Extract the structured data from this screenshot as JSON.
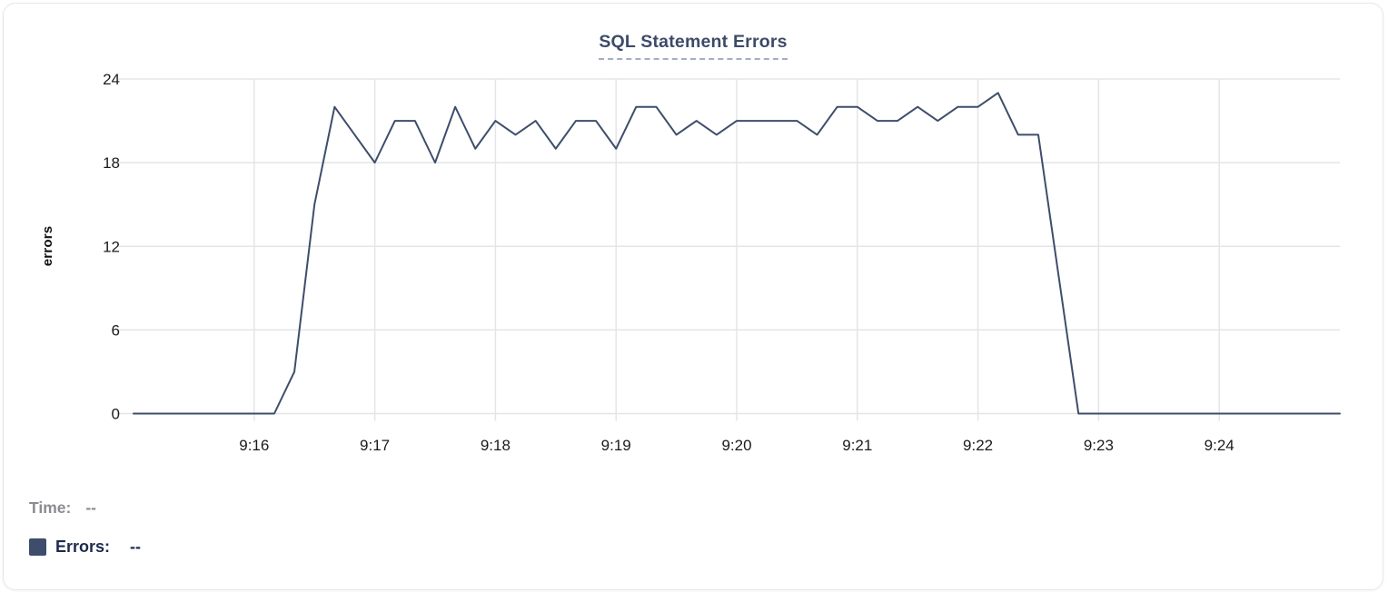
{
  "card_title": "SQL Statement Errors",
  "y_axis_title": "errors",
  "tooltip_readout": {
    "time_label": "Time:",
    "time_value": "--",
    "errors_label": "Errors:",
    "errors_value": "--"
  },
  "colors": {
    "line": "#3e4d6b",
    "grid": "#e5e5e8",
    "axis_text": "#1b1b1d",
    "title_text": "#3d4b68",
    "title_underline": "#a3aec5",
    "time_muted_text": "#8b8b90",
    "errors_legend_text": "#1e2a4e",
    "legend_swatch": "#3e4d6b"
  },
  "chart_data": {
    "type": "line",
    "title": "SQL Statement Errors",
    "xlabel": "",
    "ylabel": "errors",
    "series_name": "Errors",
    "x": [
      "9:15:00",
      "9:15:10",
      "9:15:20",
      "9:15:30",
      "9:15:40",
      "9:15:50",
      "9:16:00",
      "9:16:10",
      "9:16:20",
      "9:16:30",
      "9:16:40",
      "9:16:50",
      "9:17:00",
      "9:17:10",
      "9:17:20",
      "9:17:30",
      "9:17:40",
      "9:17:50",
      "9:18:00",
      "9:18:10",
      "9:18:20",
      "9:18:30",
      "9:18:40",
      "9:18:50",
      "9:19:00",
      "9:19:10",
      "9:19:20",
      "9:19:30",
      "9:19:40",
      "9:19:50",
      "9:20:00",
      "9:20:10",
      "9:20:20",
      "9:20:30",
      "9:20:40",
      "9:20:50",
      "9:21:00",
      "9:21:10",
      "9:21:20",
      "9:21:30",
      "9:21:40",
      "9:21:50",
      "9:22:00",
      "9:22:10",
      "9:22:20",
      "9:22:30",
      "9:22:40",
      "9:22:50",
      "9:23:00",
      "9:23:10",
      "9:23:20",
      "9:23:30",
      "9:23:40",
      "9:23:50",
      "9:24:00",
      "9:24:10",
      "9:24:20",
      "9:24:30",
      "9:24:40",
      "9:24:50",
      "9:25:00"
    ],
    "values": [
      0,
      0,
      0,
      0,
      0,
      0,
      0,
      0,
      3,
      15,
      22,
      20,
      18,
      21,
      21,
      18,
      22,
      19,
      21,
      20,
      21,
      19,
      21,
      21,
      19,
      22,
      22,
      20,
      21,
      20,
      21,
      21,
      21,
      21,
      20,
      22,
      22,
      21,
      21,
      22,
      21,
      22,
      22,
      23,
      20,
      20,
      10,
      0,
      0,
      0,
      0,
      0,
      0,
      0,
      0,
      0,
      0,
      0,
      0,
      0,
      0
    ],
    "ylim": [
      0,
      24
    ],
    "y_ticks": [
      0,
      6,
      12,
      18,
      24
    ],
    "x_tick_labels": [
      "9:16",
      "9:17",
      "9:18",
      "9:19",
      "9:20",
      "9:21",
      "9:22",
      "9:23",
      "9:24"
    ],
    "x_tick_indices": [
      6,
      12,
      18,
      24,
      30,
      36,
      42,
      48,
      54
    ],
    "grid": true,
    "legend_position": "bottom-left"
  }
}
